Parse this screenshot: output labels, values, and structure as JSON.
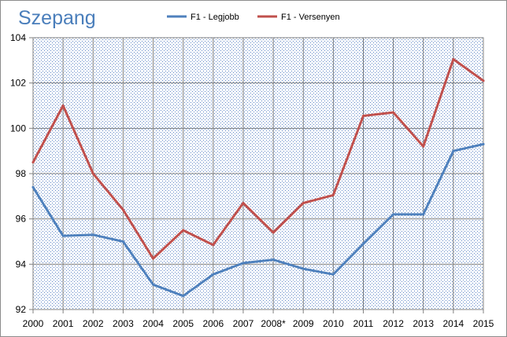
{
  "chart_data": {
    "type": "line",
    "title": "Szepang",
    "xlabel": "",
    "ylabel": "",
    "x": [
      "2000",
      "2001",
      "2002",
      "2003",
      "2004",
      "2005",
      "2006",
      "2007",
      "2008*",
      "2009",
      "2010",
      "2011",
      "2012",
      "2013",
      "2014",
      "2015"
    ],
    "ylim": [
      92,
      104
    ],
    "yticks": [
      "92",
      "94",
      "96",
      "98",
      "100",
      "102",
      "104"
    ],
    "grid": true,
    "legend_position": "top",
    "series": [
      {
        "name": "F1 - Legjobb",
        "color": "#4f81bd",
        "values": [
          97.4,
          95.25,
          95.3,
          95.0,
          93.1,
          92.6,
          93.55,
          94.05,
          94.2,
          93.8,
          93.55,
          94.9,
          96.2,
          96.2,
          99.0,
          99.3
        ]
      },
      {
        "name": "F1 - Versenyen",
        "color": "#c0504d",
        "values": [
          98.5,
          101.0,
          98.0,
          96.4,
          94.25,
          95.5,
          94.85,
          96.7,
          95.4,
          96.7,
          97.05,
          100.55,
          100.7,
          99.2,
          103.05,
          102.1
        ]
      }
    ]
  },
  "colors": {
    "plot_background": "#ffffff",
    "plot_dots": "#5a82c4",
    "grid": "#808080",
    "title": "#4a7ebb"
  }
}
